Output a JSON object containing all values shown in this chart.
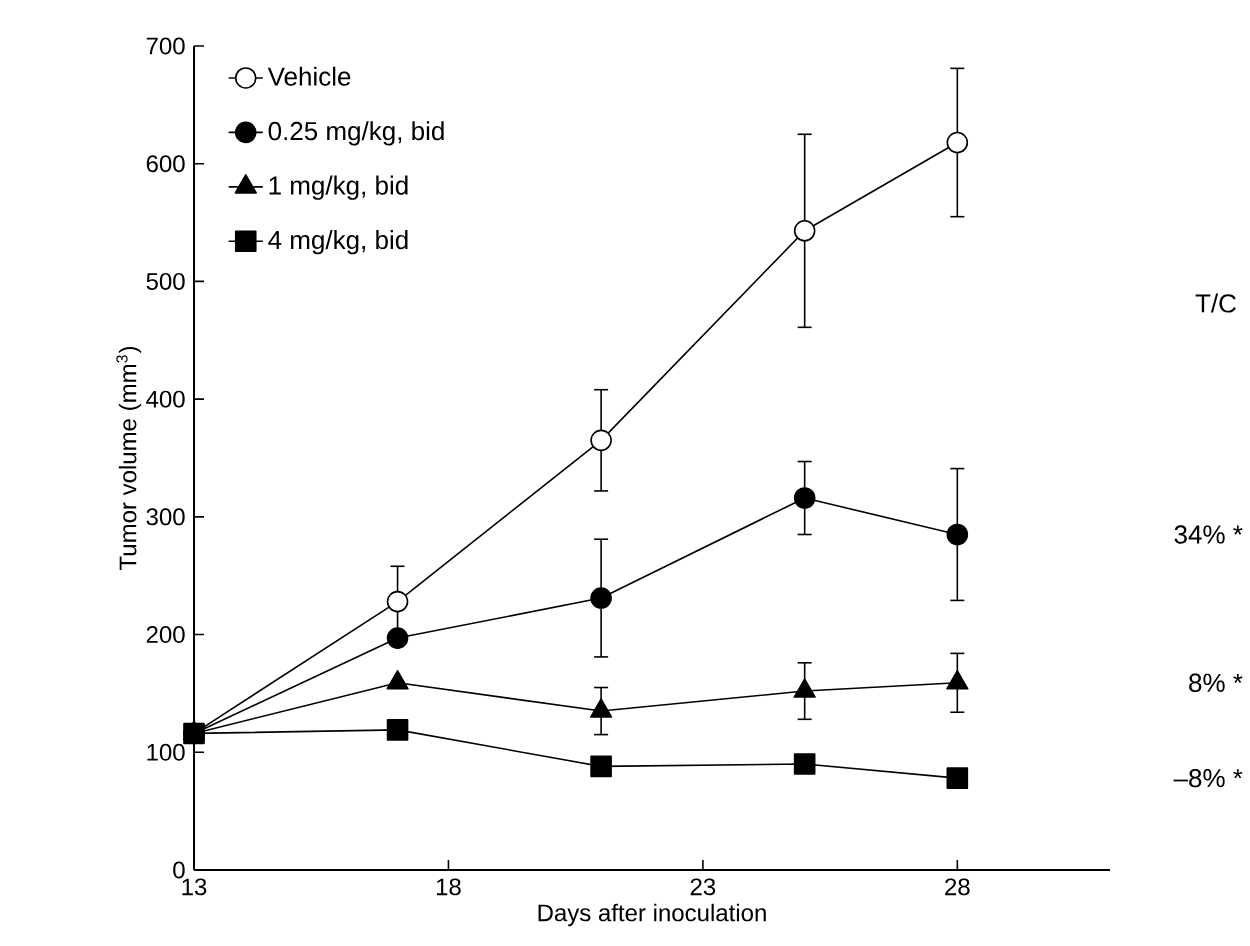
{
  "chart_data": {
    "type": "line",
    "xlabel": "Days after inoculation",
    "ylabel": "Tumor volume (mm$^{3}$)",
    "x": [
      13,
      17,
      21,
      25,
      28
    ],
    "xlim": [
      13,
      31
    ],
    "xticks": [
      13,
      18,
      23,
      28
    ],
    "ylim": [
      0,
      700
    ],
    "yticks": [
      0,
      100,
      200,
      300,
      400,
      500,
      600,
      700
    ],
    "legend": "top left",
    "grid": false,
    "series": [
      {
        "name": "Vehicle",
        "color": "#ffffff",
        "marker": "circle",
        "values": [
          116,
          228,
          365,
          543,
          618
        ],
        "errors": [
          null,
          30,
          43,
          82,
          63
        ]
      },
      {
        "name": "0.25 mg/kg, bid",
        "color": "#000000",
        "marker": "circle",
        "values": [
          116,
          197,
          231,
          316,
          285
        ],
        "errors": [
          null,
          null,
          50,
          31,
          56
        ]
      },
      {
        "name": "1 mg/kg, bid",
        "color": "#000000",
        "marker": "triangle",
        "values": [
          116,
          159,
          135,
          152,
          159
        ],
        "errors": [
          null,
          null,
          20,
          24,
          25
        ]
      },
      {
        "name": "4 mg/kg, bid",
        "color": "#000000",
        "marker": "square",
        "values": [
          116,
          119,
          88,
          90,
          78
        ]
      }
    ],
    "annotations": [
      "T/C",
      "34% *",
      "8% *",
      "–8% *"
    ]
  }
}
